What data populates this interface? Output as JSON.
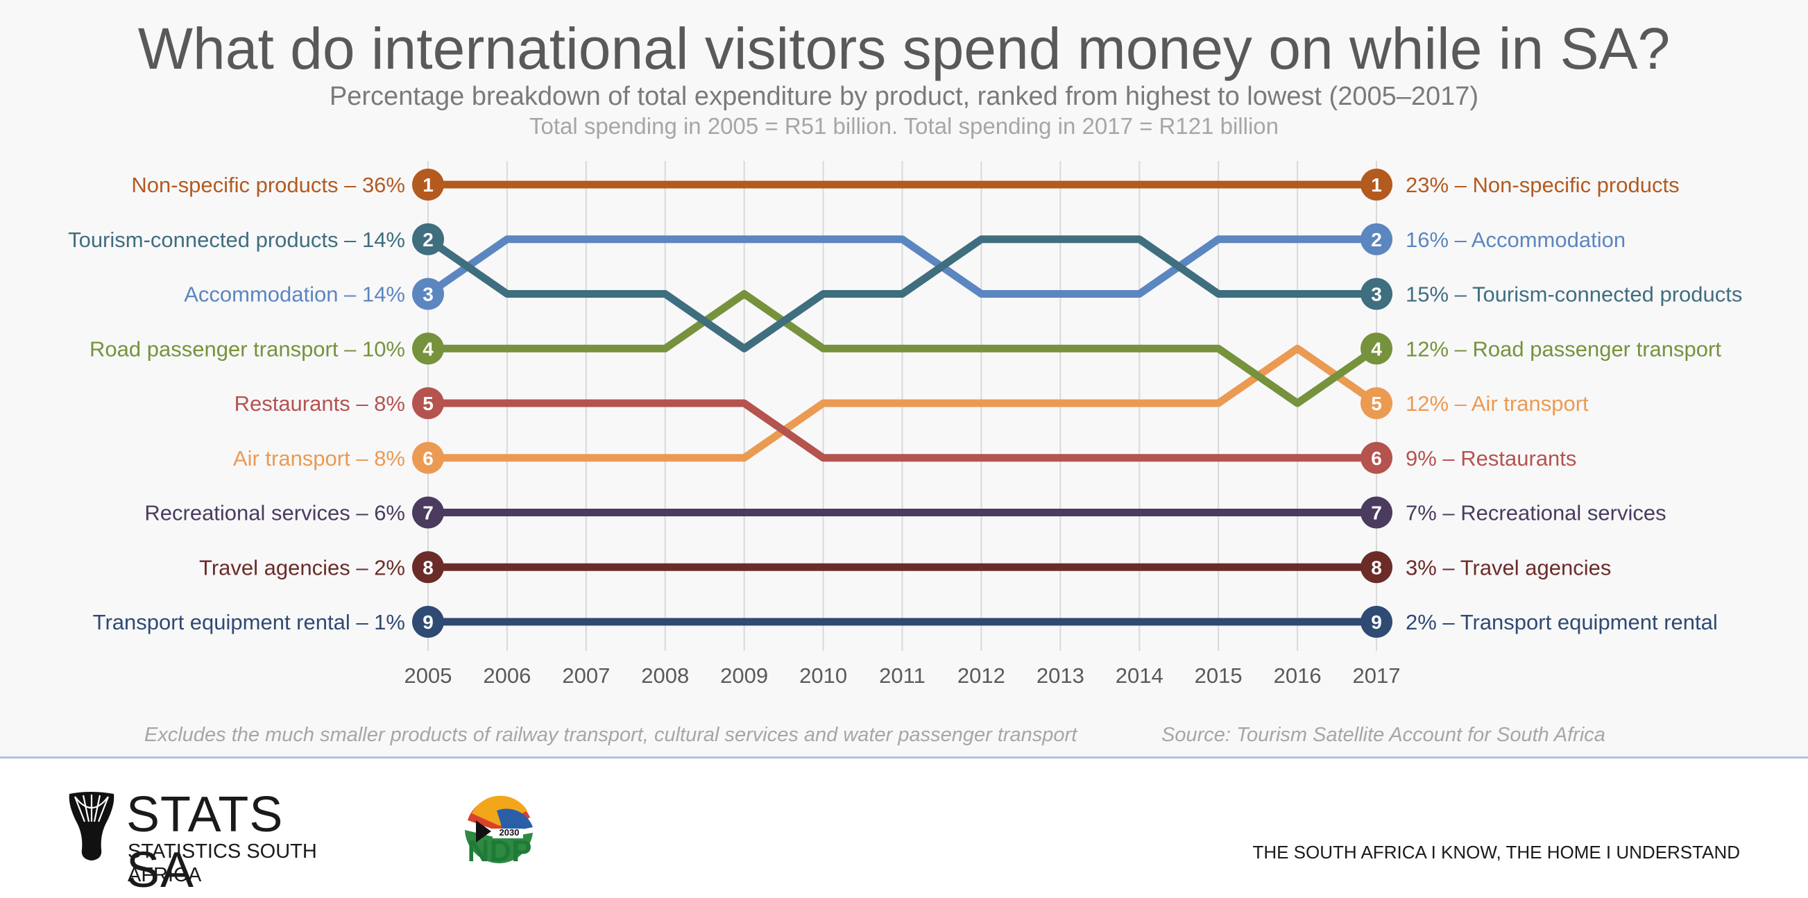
{
  "title": "What do international visitors spend money on while in SA?",
  "subtitle": "Percentage breakdown of total expenditure by product, ranked from highest to lowest (2005–2017)",
  "subtitle2": "Total spending in 2005 = R51 billion. Total spending in 2017 = R121 billion",
  "footnote": "Excludes the much smaller products of railway transport, cultural services and water passenger transport",
  "source": "Source: Tourism Satellite Account for South Africa",
  "branding": {
    "org_name": "STATS SA",
    "org_full": "STATISTICS SOUTH AFRICA",
    "ndp_year": "2030",
    "ndp_text": "NDP",
    "tagline": "THE SOUTH AFRICA I KNOW, THE HOME I UNDERSTAND"
  },
  "colors": {
    "grid": "#d9d9d9",
    "background": "#f8f8f9"
  },
  "chart_data": {
    "type": "line",
    "subtype": "bump",
    "x": [
      2005,
      2006,
      2007,
      2008,
      2009,
      2010,
      2011,
      2012,
      2013,
      2014,
      2015,
      2016,
      2017
    ],
    "y_axis": "rank",
    "ylim": [
      1,
      9
    ],
    "grid": true,
    "series": [
      {
        "name": "Non-specific products",
        "color": "#b35a1f",
        "ranks": [
          1,
          1,
          1,
          1,
          1,
          1,
          1,
          1,
          1,
          1,
          1,
          1,
          1
        ],
        "left_label": "Non-specific products – 36%",
        "right_label": "23% – Non-specific products"
      },
      {
        "name": "Tourism-connected products",
        "color": "#3f6e7f",
        "ranks": [
          2,
          3,
          3,
          3,
          4,
          3,
          3,
          2,
          2,
          2,
          3,
          3,
          3
        ],
        "left_label": "Tourism-connected products – 14%",
        "right_label": "15% – Tourism-connected products"
      },
      {
        "name": "Accommodation",
        "color": "#5b86c0",
        "ranks": [
          3,
          2,
          2,
          2,
          2,
          2,
          2,
          3,
          3,
          3,
          2,
          2,
          2
        ],
        "left_label": "Accommodation – 14%",
        "right_label": "16% – Accommodation"
      },
      {
        "name": "Road passenger transport",
        "color": "#76923c",
        "ranks": [
          4,
          4,
          4,
          4,
          3,
          4,
          4,
          4,
          4,
          4,
          4,
          5,
          4
        ],
        "left_label": "Road passenger transport – 10%",
        "right_label": "12% – Road passenger transport"
      },
      {
        "name": "Restaurants",
        "color": "#b5534f",
        "ranks": [
          5,
          5,
          5,
          5,
          5,
          6,
          6,
          6,
          6,
          6,
          6,
          6,
          6
        ],
        "left_label": "Restaurants – 8%",
        "right_label": "9% – Restaurants"
      },
      {
        "name": "Air transport",
        "color": "#eb9a52",
        "ranks": [
          6,
          6,
          6,
          6,
          6,
          5,
          5,
          5,
          5,
          5,
          5,
          4,
          5
        ],
        "left_label": "Air transport – 8%",
        "right_label": "12% – Air transport"
      },
      {
        "name": "Recreational services",
        "color": "#4a3b5f",
        "ranks": [
          7,
          7,
          7,
          7,
          7,
          7,
          7,
          7,
          7,
          7,
          7,
          7,
          7
        ],
        "left_label": "Recreational services – 6%",
        "right_label": "7% – Recreational services"
      },
      {
        "name": "Travel agencies",
        "color": "#6b2c28",
        "ranks": [
          8,
          8,
          8,
          8,
          8,
          8,
          8,
          8,
          8,
          8,
          8,
          8,
          8
        ],
        "left_label": "Travel agencies – 2%",
        "right_label": "3% – Travel agencies"
      },
      {
        "name": "Transport equipment rental",
        "color": "#2f4a73",
        "ranks": [
          9,
          9,
          9,
          9,
          9,
          9,
          9,
          9,
          9,
          9,
          9,
          9,
          9
        ],
        "left_label": "Transport equipment rental – 1%",
        "right_label": "2% – Transport equipment rental"
      }
    ]
  }
}
